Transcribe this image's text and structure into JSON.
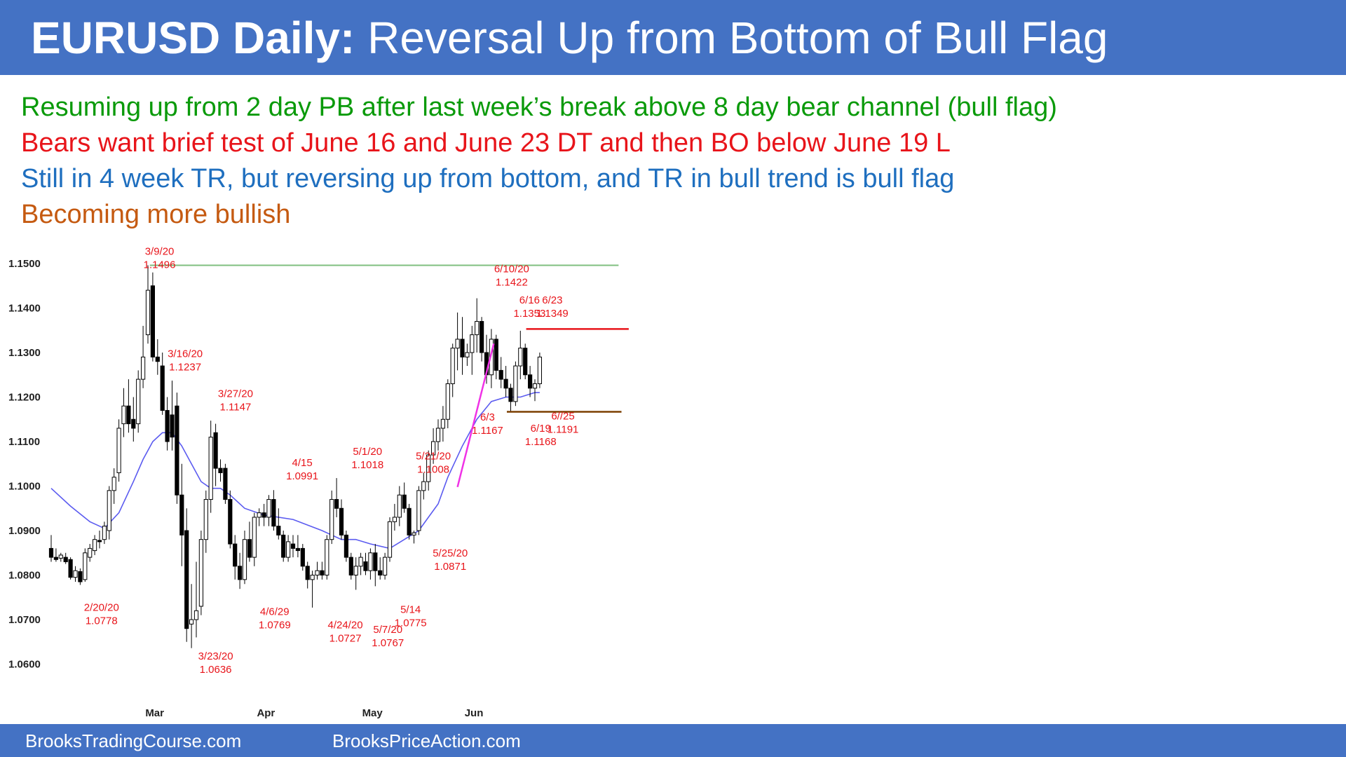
{
  "title": {
    "bold": "EURUSD Daily:",
    "rest": " Reversal Up from Bottom of Bull Flag"
  },
  "notes": [
    "Resuming up from 2 day PB after last week’s break above 8 day bear channel (bull flag)",
    "Bears want brief test of June 16 and June 23 DT and then BO below June 19 L",
    "Still in 4 week TR, but reversing up from bottom, and TR in bull trend is bull flag",
    "Becoming more bullish"
  ],
  "colors": {
    "header": "#4472C4",
    "green": "#0a9a0a",
    "red": "#e8141a",
    "blue": "#1f6fbf",
    "brown": "#c55a11",
    "ema": "#5b5bf0",
    "trend": "#f032e6",
    "resistance": "#7fbf7f",
    "support": "#7b3f00"
  },
  "footer": {
    "left": "BrooksTradingCourse.com",
    "right": "BrooksPriceAction.com"
  },
  "chart_data": {
    "type": "candlestick",
    "x_label": "",
    "y_label": "",
    "ylim": [
      1.055,
      1.152
    ],
    "grid": false,
    "y_ticks": [
      "1.0600",
      "1.0700",
      "1.0800",
      "1.0900",
      "1.1000",
      "1.1100",
      "1.1200",
      "1.1300",
      "1.1400",
      "1.1500"
    ],
    "months": [
      {
        "label": "Mar",
        "index": 21.4
      },
      {
        "label": "Apr",
        "index": 44.4
      },
      {
        "label": "May",
        "index": 66.4
      },
      {
        "label": "Jun",
        "index": 87.4
      }
    ],
    "candles": [
      [
        1.086,
        1.089,
        1.083,
        1.084
      ],
      [
        1.084,
        1.086,
        1.083,
        1.0835
      ],
      [
        1.0838,
        1.085,
        1.083,
        1.0845
      ],
      [
        1.084,
        1.085,
        1.0825,
        1.083
      ],
      [
        1.0835,
        1.084,
        1.079,
        1.0795
      ],
      [
        1.0795,
        1.082,
        1.0785,
        1.081
      ],
      [
        1.0808,
        1.0815,
        1.0778,
        1.0785
      ],
      [
        1.079,
        1.086,
        1.0785,
        1.085
      ],
      [
        1.084,
        1.087,
        1.083,
        1.086
      ],
      [
        1.0855,
        1.089,
        1.0845,
        1.088
      ],
      [
        1.0878,
        1.09,
        1.086,
        1.0875
      ],
      [
        1.088,
        1.092,
        1.087,
        1.091
      ],
      [
        1.09,
        1.1,
        1.088,
        1.099
      ],
      [
        1.099,
        1.104,
        1.096,
        1.102
      ],
      [
        1.103,
        1.115,
        1.101,
        1.113
      ],
      [
        1.114,
        1.122,
        1.111,
        1.118
      ],
      [
        1.118,
        1.124,
        1.112,
        1.114
      ],
      [
        1.115,
        1.12,
        1.11,
        1.113
      ],
      [
        1.114,
        1.126,
        1.112,
        1.124
      ],
      [
        1.124,
        1.136,
        1.122,
        1.129
      ],
      [
        1.134,
        1.1496,
        1.132,
        1.144
      ],
      [
        1.145,
        1.148,
        1.128,
        1.129
      ],
      [
        1.129,
        1.133,
        1.125,
        1.128
      ],
      [
        1.127,
        1.13,
        1.116,
        1.117
      ],
      [
        1.117,
        1.12,
        1.108,
        1.11
      ],
      [
        1.116,
        1.1237,
        1.108,
        1.111
      ],
      [
        1.118,
        1.121,
        1.096,
        1.098
      ],
      [
        1.098,
        1.105,
        1.082,
        1.089
      ],
      [
        1.09,
        1.095,
        1.065,
        1.068
      ],
      [
        1.069,
        1.078,
        1.0636,
        1.07
      ],
      [
        1.07,
        1.083,
        1.066,
        1.072
      ],
      [
        1.073,
        1.09,
        1.071,
        1.088
      ],
      [
        1.088,
        1.099,
        1.085,
        1.097
      ],
      [
        1.097,
        1.1147,
        1.094,
        1.111
      ],
      [
        1.112,
        1.114,
        1.1,
        1.104
      ],
      [
        1.104,
        1.106,
        1.101,
        1.103
      ],
      [
        1.104,
        1.105,
        1.096,
        1.097
      ],
      [
        1.097,
        1.099,
        1.086,
        1.087
      ],
      [
        1.087,
        1.089,
        1.079,
        1.082
      ],
      [
        1.082,
        1.085,
        1.0769,
        1.079
      ],
      [
        1.079,
        1.09,
        1.078,
        1.088
      ],
      [
        1.088,
        1.092,
        1.083,
        1.084
      ],
      [
        1.084,
        1.094,
        1.082,
        1.093
      ],
      [
        1.093,
        1.095,
        1.091,
        1.094
      ],
      [
        1.094,
        1.096,
        1.091,
        1.093
      ],
      [
        1.093,
        1.098,
        1.091,
        1.097
      ],
      [
        1.097,
        1.0991,
        1.09,
        1.091
      ],
      [
        1.091,
        1.095,
        1.088,
        1.089
      ],
      [
        1.089,
        1.09,
        1.083,
        1.084
      ],
      [
        1.084,
        1.089,
        1.083,
        1.0875
      ],
      [
        1.087,
        1.089,
        1.084,
        1.086
      ],
      [
        1.086,
        1.089,
        1.084,
        1.0855
      ],
      [
        1.086,
        1.087,
        1.081,
        1.082
      ],
      [
        1.082,
        1.083,
        1.077,
        1.079
      ],
      [
        1.079,
        1.081,
        1.0727,
        1.08
      ],
      [
        1.08,
        1.083,
        1.079,
        1.081
      ],
      [
        1.081,
        1.083,
        1.079,
        1.08
      ],
      [
        1.08,
        1.089,
        1.079,
        1.088
      ],
      [
        1.088,
        1.099,
        1.087,
        1.097
      ],
      [
        1.097,
        1.1018,
        1.093,
        1.095
      ],
      [
        1.095,
        1.097,
        1.088,
        1.089
      ],
      [
        1.089,
        1.09,
        1.083,
        1.084
      ],
      [
        1.084,
        1.085,
        1.079,
        1.08
      ],
      [
        1.08,
        1.084,
        1.0767,
        1.082
      ],
      [
        1.082,
        1.085,
        1.08,
        1.084
      ],
      [
        1.083,
        1.085,
        1.08,
        1.081
      ],
      [
        1.081,
        1.086,
        1.079,
        1.085
      ],
      [
        1.085,
        1.087,
        1.0775,
        1.081
      ],
      [
        1.081,
        1.084,
        1.079,
        1.08
      ],
      [
        1.08,
        1.085,
        1.079,
        1.084
      ],
      [
        1.084,
        1.093,
        1.083,
        1.092
      ],
      [
        1.092,
        1.096,
        1.09,
        1.093
      ],
      [
        1.093,
        1.1,
        1.091,
        1.098
      ],
      [
        1.098,
        1.1008,
        1.094,
        1.095
      ],
      [
        1.095,
        1.096,
        1.088,
        1.089
      ],
      [
        1.089,
        1.09,
        1.0871,
        1.0895
      ],
      [
        1.09,
        1.1,
        1.089,
        1.099
      ],
      [
        1.099,
        1.103,
        1.097,
        1.101
      ],
      [
        1.101,
        1.108,
        1.099,
        1.107
      ],
      [
        1.107,
        1.113,
        1.105,
        1.11
      ],
      [
        1.11,
        1.115,
        1.108,
        1.113
      ],
      [
        1.113,
        1.118,
        1.11,
        1.115
      ],
      [
        1.115,
        1.124,
        1.113,
        1.123
      ],
      [
        1.123,
        1.132,
        1.12,
        1.131
      ],
      [
        1.131,
        1.139,
        1.126,
        1.133
      ],
      [
        1.133,
        1.138,
        1.125,
        1.129
      ],
      [
        1.129,
        1.132,
        1.127,
        1.13
      ],
      [
        1.13,
        1.136,
        1.125,
        1.134
      ],
      [
        1.134,
        1.1422,
        1.13,
        1.137
      ],
      [
        1.137,
        1.138,
        1.128,
        1.13
      ],
      [
        1.13,
        1.134,
        1.123,
        1.125
      ],
      [
        1.125,
        1.1353,
        1.122,
        1.133
      ],
      [
        1.133,
        1.134,
        1.124,
        1.126
      ],
      [
        1.126,
        1.129,
        1.122,
        1.124
      ],
      [
        1.124,
        1.127,
        1.12,
        1.122
      ],
      [
        1.122,
        1.123,
        1.1168,
        1.119
      ],
      [
        1.119,
        1.128,
        1.118,
        1.127
      ],
      [
        1.127,
        1.1349,
        1.124,
        1.131
      ],
      [
        1.131,
        1.132,
        1.124,
        1.125
      ],
      [
        1.125,
        1.127,
        1.12,
        1.122
      ],
      [
        1.122,
        1.124,
        1.1191,
        1.123
      ],
      [
        1.123,
        1.13,
        1.122,
        1.129
      ]
    ],
    "ema_label": "",
    "ema": [
      [
        0,
        1.0995
      ],
      [
        4,
        1.0955
      ],
      [
        8,
        1.092
      ],
      [
        11,
        1.0905
      ],
      [
        14,
        1.094
      ],
      [
        17,
        1.101
      ],
      [
        19,
        1.106
      ],
      [
        21,
        1.11
      ],
      [
        23,
        1.112
      ],
      [
        25,
        1.112
      ],
      [
        27,
        1.109
      ],
      [
        29,
        1.105
      ],
      [
        31,
        1.101
      ],
      [
        33,
        1.0995
      ],
      [
        35,
        1.0995
      ],
      [
        37,
        1.098
      ],
      [
        40,
        1.095
      ],
      [
        44,
        1.0935
      ],
      [
        50,
        1.0925
      ],
      [
        56,
        1.09
      ],
      [
        60,
        1.088
      ],
      [
        63,
        1.088
      ],
      [
        66,
        1.087
      ],
      [
        70,
        1.086
      ],
      [
        73,
        1.088
      ],
      [
        76,
        1.09
      ],
      [
        78,
        1.093
      ],
      [
        80,
        1.096
      ],
      [
        82,
        1.102
      ],
      [
        85,
        1.109
      ],
      [
        88,
        1.115
      ],
      [
        91,
        1.119
      ],
      [
        94,
        1.12
      ],
      [
        97,
        1.12
      ],
      [
        100,
        1.121
      ],
      [
        101,
        1.121
      ]
    ],
    "lines": [
      {
        "name": "",
        "kind": "resistance",
        "from": [
          20.4,
          1.1496
        ],
        "to": [
          117.3,
          1.1496
        ]
      },
      {
        "name": "",
        "kind": "double-top",
        "from": [
          98.2,
          1.1353
        ],
        "to": [
          119.4,
          1.1353
        ]
      },
      {
        "name": "",
        "kind": "support",
        "from": [
          94.2,
          1.1167
        ],
        "to": [
          117.9,
          1.1167
        ]
      },
      {
        "name": "",
        "kind": "trend",
        "from": [
          84.0,
          1.0998
        ],
        "to": [
          91.5,
          1.132
        ]
      }
    ],
    "annotations": [
      {
        "lines": [
          "3/9/20",
          "1.1496"
        ],
        "index": 22.4,
        "top": 1.152
      },
      {
        "lines": [
          "3/16/20",
          "1.1237"
        ],
        "index": 27.7,
        "top": 1.129
      },
      {
        "lines": [
          "2/20/20",
          "1.0778"
        ],
        "index": 10.4,
        "top": 1.072
      },
      {
        "lines": [
          "3/23/20",
          "1.0636"
        ],
        "index": 34.0,
        "top": 1.061
      },
      {
        "lines": [
          "3/27/20",
          "1.1147"
        ],
        "index": 38.1,
        "top": 1.12
      },
      {
        "lines": [
          "4/6/29",
          "1.0769"
        ],
        "index": 46.2,
        "top": 1.071
      },
      {
        "lines": [
          "4/15",
          "1.0991"
        ],
        "index": 51.9,
        "top": 1.1045
      },
      {
        "lines": [
          "4/24/20",
          "1.0727"
        ],
        "index": 60.8,
        "top": 1.068
      },
      {
        "lines": [
          "5/1/20",
          "1.1018"
        ],
        "index": 65.4,
        "top": 1.107
      },
      {
        "lines": [
          "5/7/20",
          "1.0767"
        ],
        "index": 69.6,
        "top": 1.067
      },
      {
        "lines": [
          "5/14",
          "1.0775"
        ],
        "index": 74.3,
        "top": 1.0715
      },
      {
        "lines": [
          "5/21/20",
          "1.1008"
        ],
        "index": 79.0,
        "top": 1.106
      },
      {
        "lines": [
          "5/25/20",
          "1.0871"
        ],
        "index": 82.5,
        "top": 1.0842
      },
      {
        "lines": [
          "6/3",
          "1.1167"
        ],
        "index": 90.2,
        "top": 1.1147
      },
      {
        "lines": [
          "6/10/20",
          "1.1422"
        ],
        "index": 95.2,
        "top": 1.148
      },
      {
        "lines": [
          "6/16",
          "1.1353"
        ],
        "index": 98.9,
        "top": 1.141
      },
      {
        "lines": [
          "6/23",
          "1.1349"
        ],
        "index": 103.6,
        "top": 1.141
      },
      {
        "lines": [
          "6/19",
          "1.1168"
        ],
        "index": 101.2,
        "top": 1.1122
      },
      {
        "lines": [
          "6//25",
          "1.1191"
        ],
        "index": 105.8,
        "top": 1.115
      }
    ]
  }
}
